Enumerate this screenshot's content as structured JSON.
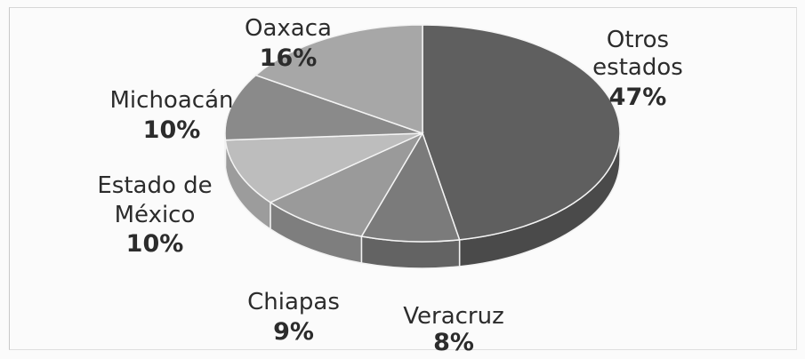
{
  "chart_data": {
    "type": "pie",
    "slices": [
      {
        "label": "Otros estados",
        "value": 47,
        "display": "47%",
        "color": "#5f5f5f",
        "side": "#4a4a4a"
      },
      {
        "label": "Veracruz",
        "value": 8,
        "display": "8%",
        "color": "#7b7b7b",
        "side": "#636363"
      },
      {
        "label": "Chiapas",
        "value": 9,
        "display": "9%",
        "color": "#9a9a9a",
        "side": "#7e7e7e"
      },
      {
        "label": "Estado de México",
        "value": 10,
        "display": "10%",
        "color": "#bdbdbd",
        "side": "#9c9c9c"
      },
      {
        "label": "Michoacán",
        "value": 10,
        "display": "10%",
        "color": "#8a8a8a",
        "side": "#6f6f6f"
      },
      {
        "label": "Oaxaca",
        "value": 16,
        "display": "16%",
        "color": "#a7a7a7",
        "side": "#8b8b8b"
      }
    ],
    "labels": {
      "otros": {
        "line1": "Otros",
        "line2": "estados",
        "pct": "47%"
      },
      "veracruz": {
        "line1": "Veracruz",
        "pct": "8%"
      },
      "chiapas": {
        "line1": "Chiapas",
        "pct": "9%"
      },
      "edomex": {
        "line1": "Estado de",
        "line2": "México",
        "pct": "10%"
      },
      "michoacan": {
        "line1": "Michoacán",
        "pct": "10%"
      },
      "oaxaca": {
        "line1": "Oaxaca",
        "pct": "16%"
      }
    },
    "style": "3d"
  }
}
